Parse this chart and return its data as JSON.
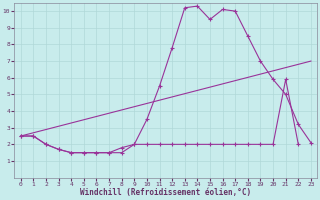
{
  "xlabel": "Windchill (Refroidissement éolien,°C)",
  "bg_color": "#c8ecec",
  "grid_color": "#b0d8d8",
  "line_color": "#993399",
  "xlim": [
    -0.5,
    23.5
  ],
  "ylim": [
    0,
    10.5
  ],
  "xticks": [
    0,
    1,
    2,
    3,
    4,
    5,
    6,
    7,
    8,
    9,
    10,
    11,
    12,
    13,
    14,
    15,
    16,
    17,
    18,
    19,
    20,
    21,
    22,
    23
  ],
  "yticks": [
    1,
    2,
    3,
    4,
    5,
    6,
    7,
    8,
    9,
    10
  ],
  "line1_x": [
    0,
    1,
    2,
    3,
    4,
    5,
    6,
    7,
    8,
    9,
    10,
    11,
    12,
    13,
    14,
    15,
    16,
    17,
    18,
    19,
    20,
    21,
    22,
    23
  ],
  "line1_y": [
    2.5,
    2.5,
    2.0,
    1.7,
    1.5,
    1.5,
    1.5,
    1.5,
    1.5,
    2.0,
    3.5,
    5.5,
    7.8,
    10.2,
    10.3,
    9.5,
    10.1,
    10.0,
    8.5,
    7.0,
    5.9,
    5.0,
    3.2,
    2.1
  ],
  "line2_x": [
    0,
    1,
    2,
    3,
    4,
    5,
    6,
    7,
    8,
    9,
    10,
    11,
    12,
    13,
    14,
    15,
    16,
    17,
    18,
    19,
    20,
    21,
    22
  ],
  "line2_y": [
    2.5,
    2.5,
    2.0,
    1.7,
    1.5,
    1.5,
    1.5,
    1.5,
    1.8,
    2.0,
    2.0,
    2.0,
    2.0,
    2.0,
    2.0,
    2.0,
    2.0,
    2.0,
    2.0,
    2.0,
    2.0,
    5.9,
    2.0
  ],
  "line3_x": [
    0,
    23
  ],
  "line3_y": [
    2.5,
    7.0
  ]
}
